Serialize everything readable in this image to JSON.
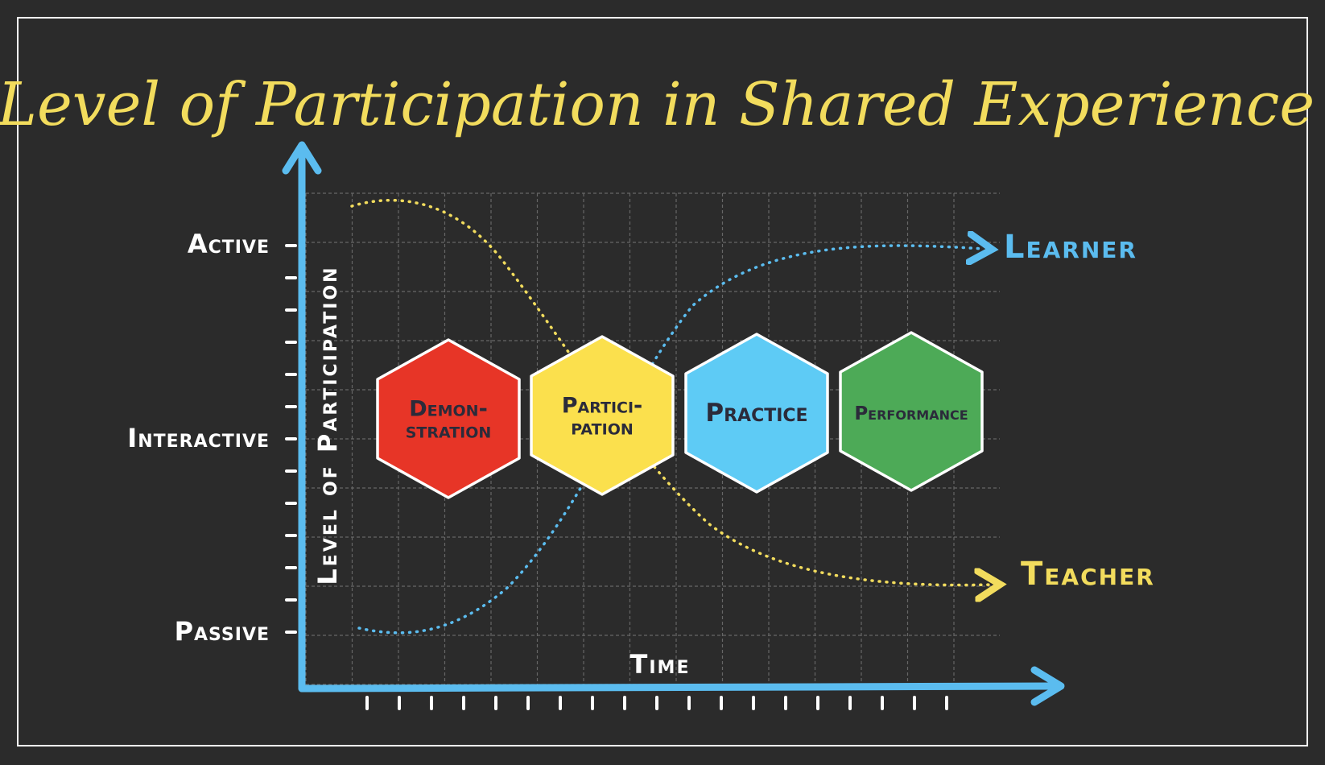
{
  "title": "Level of Participation in Shared Experience",
  "y_axis": {
    "label": "Level of Participation",
    "levels": [
      "Active",
      "Interactive",
      "Passive"
    ]
  },
  "x_axis": {
    "label": "Time"
  },
  "curves": {
    "learner": {
      "label": "Learner",
      "color": "#5bbcef"
    },
    "teacher": {
      "label": "Teacher",
      "color": "#f2dc5d"
    }
  },
  "stages": [
    {
      "label_lines": [
        "Demon-",
        "stration"
      ],
      "color": "#e73527"
    },
    {
      "label_lines": [
        "Partici-",
        "pation"
      ],
      "color": "#fbe04d"
    },
    {
      "label_lines": [
        "Practice"
      ],
      "color": "#5ecbf5"
    },
    {
      "label_lines": [
        "Performance"
      ],
      "color": "#4daa57"
    }
  ],
  "colors": {
    "background": "#2b2b2b",
    "frame": "#ffffff",
    "axis": "#5bbcef",
    "title": "#f2dc5d",
    "grid": "#666666",
    "label": "#ffffff",
    "stage_text": "#2b2b3a"
  }
}
